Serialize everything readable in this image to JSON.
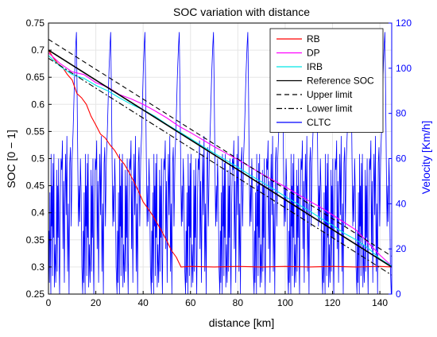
{
  "chart_data": {
    "type": "line",
    "title": "SOC variation with distance",
    "xlabel": "distance [km]",
    "ylabel_left": "SOC [0 − 1]",
    "ylabel_right": "Velocity [Km/h]",
    "xlim": [
      0,
      145
    ],
    "ylim_left": [
      0.25,
      0.75
    ],
    "ylim_right": [
      0,
      120
    ],
    "xticks": [
      "0",
      "20",
      "40",
      "60",
      "80",
      "100",
      "120",
      "140"
    ],
    "yticks_left": [
      "0.25",
      "0.3",
      "0.35",
      "0.4",
      "0.45",
      "0.5",
      "0.55",
      "0.6",
      "0.65",
      "0.7",
      "0.75"
    ],
    "yticks_right": [
      "0",
      "20",
      "40",
      "60",
      "80",
      "100",
      "120"
    ],
    "grid": true,
    "legend_position": "top-right",
    "colors": {
      "axis_left": "#000000",
      "axis_right": "#0000ff",
      "grid": "#e6e6e6"
    },
    "series": [
      {
        "name": "RB",
        "color": "#ff0000",
        "style": "solid",
        "axis": "left",
        "x": [
          0,
          2,
          4,
          6,
          8,
          10,
          12,
          14,
          16,
          18,
          20,
          22,
          24,
          26,
          28,
          30,
          32,
          34,
          36,
          38,
          40,
          42,
          44,
          46,
          48,
          50,
          52,
          54,
          56,
          60,
          70,
          80,
          90,
          100,
          110,
          120,
          130,
          140,
          145
        ],
        "y": [
          0.7,
          0.686,
          0.675,
          0.668,
          0.655,
          0.645,
          0.62,
          0.612,
          0.6,
          0.578,
          0.562,
          0.545,
          0.538,
          0.525,
          0.515,
          0.5,
          0.49,
          0.475,
          0.458,
          0.44,
          0.42,
          0.408,
          0.395,
          0.38,
          0.365,
          0.348,
          0.33,
          0.318,
          0.3,
          0.301,
          0.3,
          0.301,
          0.3,
          0.301,
          0.3,
          0.301,
          0.3,
          0.301,
          0.3
        ]
      },
      {
        "name": "DP",
        "color": "#ff00ff",
        "style": "solid",
        "axis": "left",
        "x": [
          0,
          5,
          10,
          15,
          20,
          25,
          30,
          35,
          40,
          45,
          50,
          55,
          60,
          65,
          70,
          75,
          80,
          85,
          90,
          95,
          100,
          105,
          110,
          115,
          120,
          125,
          130,
          135,
          140,
          145
        ],
        "y": [
          0.695,
          0.675,
          0.66,
          0.655,
          0.64,
          0.632,
          0.618,
          0.61,
          0.6,
          0.588,
          0.575,
          0.56,
          0.548,
          0.535,
          0.522,
          0.51,
          0.498,
          0.485,
          0.472,
          0.46,
          0.448,
          0.435,
          0.422,
          0.41,
          0.396,
          0.382,
          0.368,
          0.345,
          0.322,
          0.302
        ]
      },
      {
        "name": "IRB",
        "color": "#00e6e6",
        "style": "solid",
        "axis": "left",
        "x": [
          0,
          5,
          10,
          15,
          20,
          25,
          30,
          35,
          40,
          45,
          50,
          55,
          60,
          65,
          70,
          75,
          80,
          85,
          90,
          95,
          100,
          105,
          110,
          115,
          120,
          125,
          130,
          135,
          140,
          145
        ],
        "y": [
          0.69,
          0.67,
          0.655,
          0.648,
          0.635,
          0.625,
          0.612,
          0.6,
          0.59,
          0.578,
          0.563,
          0.55,
          0.537,
          0.523,
          0.51,
          0.497,
          0.484,
          0.47,
          0.457,
          0.444,
          0.43,
          0.417,
          0.404,
          0.39,
          0.377,
          0.362,
          0.35,
          0.335,
          0.315,
          0.302
        ]
      },
      {
        "name": "Reference SOC",
        "color": "#000000",
        "style": "solid",
        "axis": "left",
        "x": [
          0,
          145
        ],
        "y": [
          0.7,
          0.3
        ]
      },
      {
        "name": "Upper limit",
        "color": "#000000",
        "style": "dashed",
        "axis": "left",
        "x": [
          0,
          145
        ],
        "y": [
          0.72,
          0.32
        ]
      },
      {
        "name": "Lower limit",
        "color": "#000000",
        "style": "dashdot",
        "axis": "left",
        "x": [
          0,
          145
        ],
        "y": [
          0.685,
          0.285
        ]
      },
      {
        "name": "CLTC",
        "color": "#0000ff",
        "style": "solid",
        "axis": "right",
        "cycle_length_km": 14.48,
        "cycles": 10,
        "cycle_x": [
          0,
          0.2,
          0.4,
          0.6,
          0.8,
          1.0,
          1.1,
          1.3,
          1.5,
          1.7,
          1.9,
          2.1,
          2.3,
          2.5,
          2.8,
          3.1,
          3.3,
          3.5,
          3.7,
          3.9,
          4.1,
          4.3,
          4.5,
          4.7,
          5.0,
          5.3,
          5.6,
          5.9,
          6.1,
          6.4,
          6.7,
          7.0,
          7.2,
          7.5,
          7.8,
          8.1,
          8.4,
          8.7,
          9.0,
          9.3,
          9.6,
          10.0,
          10.4,
          10.8,
          11.0,
          11.2,
          11.5,
          11.8,
          12.1,
          12.4,
          12.7,
          13.0,
          13.2,
          13.5,
          13.8,
          14.1,
          14.48
        ],
        "cycle_y": [
          0,
          28,
          5,
          45,
          20,
          0,
          62,
          30,
          48,
          8,
          58,
          25,
          62,
          3,
          22,
          5,
          20,
          55,
          10,
          48,
          25,
          60,
          15,
          0,
          40,
          60,
          55,
          68,
          20,
          50,
          5,
          48,
          62,
          35,
          70,
          10,
          40,
          0,
          58,
          65,
          30,
          60,
          72,
          88,
          96,
          102,
          110,
          116,
          90,
          58,
          30,
          48,
          32,
          60,
          45,
          12,
          0
        ]
      }
    ]
  }
}
